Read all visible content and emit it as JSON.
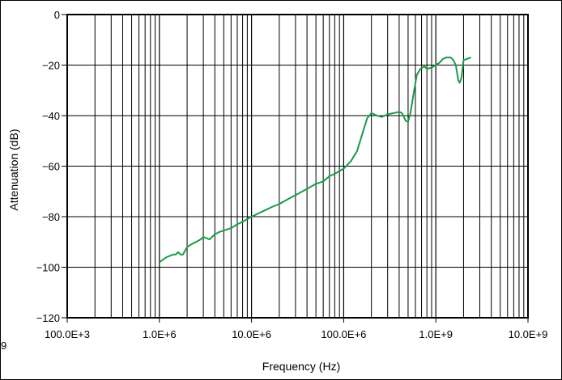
{
  "chart_data": {
    "type": "line",
    "title": "",
    "xlabel": "Frequency (Hz)",
    "ylabel": "Attenuation (dB)",
    "x_scale": "log",
    "xlim": [
      100000,
      10000000000
    ],
    "ylim": [
      -120,
      0
    ],
    "x_ticks": [
      {
        "value": 100000,
        "label": "100.0E+3"
      },
      {
        "value": 1000000,
        "label": "1.0E+6"
      },
      {
        "value": 10000000,
        "label": "10.0E+6"
      },
      {
        "value": 100000000,
        "label": "100.0E+6"
      },
      {
        "value": 1000000000,
        "label": "1.0E+9"
      },
      {
        "value": 10000000000,
        "label": "10.0E+9"
      }
    ],
    "y_ticks": [
      {
        "value": 0,
        "label": "0"
      },
      {
        "value": -20,
        "label": "−20"
      },
      {
        "value": -40,
        "label": "−40"
      },
      {
        "value": -60,
        "label": "−60"
      },
      {
        "value": -80,
        "label": "−80"
      },
      {
        "value": -100,
        "label": "−100"
      },
      {
        "value": -120,
        "label": "−120"
      }
    ],
    "grid": true,
    "series": [
      {
        "color": "#1a9a4a",
        "points": [
          [
            1000000,
            -98
          ],
          [
            1100000,
            -97
          ],
          [
            1200000,
            -96
          ],
          [
            1300000,
            -95.5
          ],
          [
            1400000,
            -95
          ],
          [
            1500000,
            -95
          ],
          [
            1600000,
            -94
          ],
          [
            1700000,
            -95
          ],
          [
            1800000,
            -95
          ],
          [
            2000000,
            -92
          ],
          [
            2200000,
            -91
          ],
          [
            2500000,
            -90
          ],
          [
            2800000,
            -89
          ],
          [
            3000000,
            -88
          ],
          [
            3500000,
            -89
          ],
          [
            4000000,
            -87
          ],
          [
            4500000,
            -86
          ],
          [
            5000000,
            -85.5
          ],
          [
            6000000,
            -84.5
          ],
          [
            7000000,
            -83
          ],
          [
            8000000,
            -82
          ],
          [
            10000000,
            -80
          ],
          [
            13000000,
            -78
          ],
          [
            17000000,
            -76
          ],
          [
            20000000,
            -75
          ],
          [
            25000000,
            -73
          ],
          [
            30000000,
            -71.5
          ],
          [
            40000000,
            -69
          ],
          [
            50000000,
            -67
          ],
          [
            60000000,
            -66
          ],
          [
            70000000,
            -64
          ],
          [
            80000000,
            -63
          ],
          [
            100000000,
            -61
          ],
          [
            120000000,
            -58
          ],
          [
            140000000,
            -54
          ],
          [
            160000000,
            -47
          ],
          [
            180000000,
            -41
          ],
          [
            200000000,
            -39
          ],
          [
            230000000,
            -40
          ],
          [
            260000000,
            -40.5
          ],
          [
            300000000,
            -39.5
          ],
          [
            350000000,
            -39
          ],
          [
            400000000,
            -38.5
          ],
          [
            430000000,
            -39
          ],
          [
            470000000,
            -42
          ],
          [
            500000000,
            -42.5
          ],
          [
            530000000,
            -39
          ],
          [
            570000000,
            -32
          ],
          [
            620000000,
            -24
          ],
          [
            680000000,
            -21.5
          ],
          [
            750000000,
            -20.5
          ],
          [
            800000000,
            -21.5
          ],
          [
            900000000,
            -21
          ],
          [
            1000000000,
            -20
          ],
          [
            1100000000,
            -19
          ],
          [
            1200000000,
            -17.5
          ],
          [
            1300000000,
            -17
          ],
          [
            1450000000,
            -17
          ],
          [
            1550000000,
            -18
          ],
          [
            1650000000,
            -20
          ],
          [
            1750000000,
            -26
          ],
          [
            1820000000,
            -27
          ],
          [
            1900000000,
            -25
          ],
          [
            2000000000,
            -18
          ],
          [
            2200000000,
            -17.5
          ],
          [
            2400000000,
            -17
          ]
        ]
      }
    ]
  },
  "side_mark": "9"
}
